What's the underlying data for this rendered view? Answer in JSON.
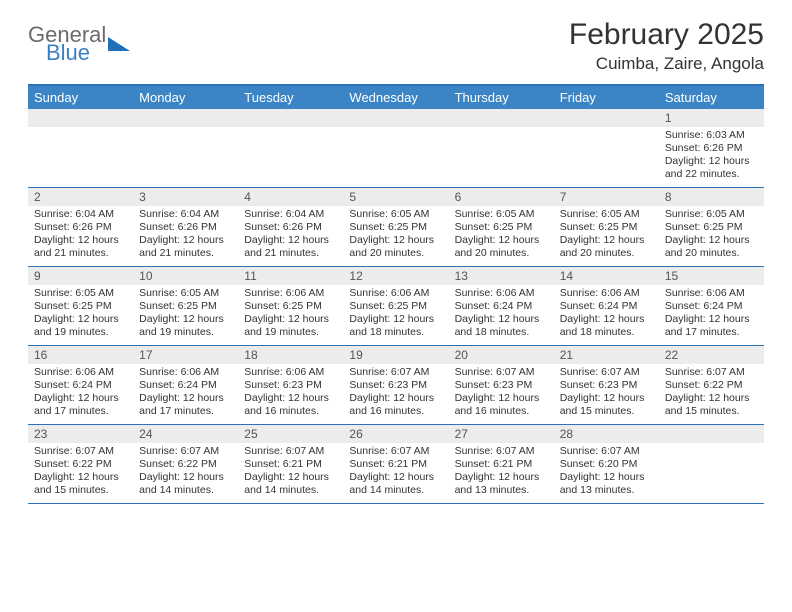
{
  "logo": {
    "text1": "General",
    "text2": "Blue"
  },
  "title": "February 2025",
  "location": "Cuimba, Zaire, Angola",
  "colors": {
    "header_bar": "#3b85c6",
    "border": "#2b72b8",
    "daynum_bg": "#ececec",
    "text": "#333333"
  },
  "weekdays": [
    "Sunday",
    "Monday",
    "Tuesday",
    "Wednesday",
    "Thursday",
    "Friday",
    "Saturday"
  ],
  "weeks": [
    [
      {
        "day": "",
        "sunrise": "",
        "sunset": "",
        "daylight": ""
      },
      {
        "day": "",
        "sunrise": "",
        "sunset": "",
        "daylight": ""
      },
      {
        "day": "",
        "sunrise": "",
        "sunset": "",
        "daylight": ""
      },
      {
        "day": "",
        "sunrise": "",
        "sunset": "",
        "daylight": ""
      },
      {
        "day": "",
        "sunrise": "",
        "sunset": "",
        "daylight": ""
      },
      {
        "day": "",
        "sunrise": "",
        "sunset": "",
        "daylight": ""
      },
      {
        "day": "1",
        "sunrise": "Sunrise: 6:03 AM",
        "sunset": "Sunset: 6:26 PM",
        "daylight": "Daylight: 12 hours and 22 minutes."
      }
    ],
    [
      {
        "day": "2",
        "sunrise": "Sunrise: 6:04 AM",
        "sunset": "Sunset: 6:26 PM",
        "daylight": "Daylight: 12 hours and 21 minutes."
      },
      {
        "day": "3",
        "sunrise": "Sunrise: 6:04 AM",
        "sunset": "Sunset: 6:26 PM",
        "daylight": "Daylight: 12 hours and 21 minutes."
      },
      {
        "day": "4",
        "sunrise": "Sunrise: 6:04 AM",
        "sunset": "Sunset: 6:26 PM",
        "daylight": "Daylight: 12 hours and 21 minutes."
      },
      {
        "day": "5",
        "sunrise": "Sunrise: 6:05 AM",
        "sunset": "Sunset: 6:25 PM",
        "daylight": "Daylight: 12 hours and 20 minutes."
      },
      {
        "day": "6",
        "sunrise": "Sunrise: 6:05 AM",
        "sunset": "Sunset: 6:25 PM",
        "daylight": "Daylight: 12 hours and 20 minutes."
      },
      {
        "day": "7",
        "sunrise": "Sunrise: 6:05 AM",
        "sunset": "Sunset: 6:25 PM",
        "daylight": "Daylight: 12 hours and 20 minutes."
      },
      {
        "day": "8",
        "sunrise": "Sunrise: 6:05 AM",
        "sunset": "Sunset: 6:25 PM",
        "daylight": "Daylight: 12 hours and 20 minutes."
      }
    ],
    [
      {
        "day": "9",
        "sunrise": "Sunrise: 6:05 AM",
        "sunset": "Sunset: 6:25 PM",
        "daylight": "Daylight: 12 hours and 19 minutes."
      },
      {
        "day": "10",
        "sunrise": "Sunrise: 6:05 AM",
        "sunset": "Sunset: 6:25 PM",
        "daylight": "Daylight: 12 hours and 19 minutes."
      },
      {
        "day": "11",
        "sunrise": "Sunrise: 6:06 AM",
        "sunset": "Sunset: 6:25 PM",
        "daylight": "Daylight: 12 hours and 19 minutes."
      },
      {
        "day": "12",
        "sunrise": "Sunrise: 6:06 AM",
        "sunset": "Sunset: 6:25 PM",
        "daylight": "Daylight: 12 hours and 18 minutes."
      },
      {
        "day": "13",
        "sunrise": "Sunrise: 6:06 AM",
        "sunset": "Sunset: 6:24 PM",
        "daylight": "Daylight: 12 hours and 18 minutes."
      },
      {
        "day": "14",
        "sunrise": "Sunrise: 6:06 AM",
        "sunset": "Sunset: 6:24 PM",
        "daylight": "Daylight: 12 hours and 18 minutes."
      },
      {
        "day": "15",
        "sunrise": "Sunrise: 6:06 AM",
        "sunset": "Sunset: 6:24 PM",
        "daylight": "Daylight: 12 hours and 17 minutes."
      }
    ],
    [
      {
        "day": "16",
        "sunrise": "Sunrise: 6:06 AM",
        "sunset": "Sunset: 6:24 PM",
        "daylight": "Daylight: 12 hours and 17 minutes."
      },
      {
        "day": "17",
        "sunrise": "Sunrise: 6:06 AM",
        "sunset": "Sunset: 6:24 PM",
        "daylight": "Daylight: 12 hours and 17 minutes."
      },
      {
        "day": "18",
        "sunrise": "Sunrise: 6:06 AM",
        "sunset": "Sunset: 6:23 PM",
        "daylight": "Daylight: 12 hours and 16 minutes."
      },
      {
        "day": "19",
        "sunrise": "Sunrise: 6:07 AM",
        "sunset": "Sunset: 6:23 PM",
        "daylight": "Daylight: 12 hours and 16 minutes."
      },
      {
        "day": "20",
        "sunrise": "Sunrise: 6:07 AM",
        "sunset": "Sunset: 6:23 PM",
        "daylight": "Daylight: 12 hours and 16 minutes."
      },
      {
        "day": "21",
        "sunrise": "Sunrise: 6:07 AM",
        "sunset": "Sunset: 6:23 PM",
        "daylight": "Daylight: 12 hours and 15 minutes."
      },
      {
        "day": "22",
        "sunrise": "Sunrise: 6:07 AM",
        "sunset": "Sunset: 6:22 PM",
        "daylight": "Daylight: 12 hours and 15 minutes."
      }
    ],
    [
      {
        "day": "23",
        "sunrise": "Sunrise: 6:07 AM",
        "sunset": "Sunset: 6:22 PM",
        "daylight": "Daylight: 12 hours and 15 minutes."
      },
      {
        "day": "24",
        "sunrise": "Sunrise: 6:07 AM",
        "sunset": "Sunset: 6:22 PM",
        "daylight": "Daylight: 12 hours and 14 minutes."
      },
      {
        "day": "25",
        "sunrise": "Sunrise: 6:07 AM",
        "sunset": "Sunset: 6:21 PM",
        "daylight": "Daylight: 12 hours and 14 minutes."
      },
      {
        "day": "26",
        "sunrise": "Sunrise: 6:07 AM",
        "sunset": "Sunset: 6:21 PM",
        "daylight": "Daylight: 12 hours and 14 minutes."
      },
      {
        "day": "27",
        "sunrise": "Sunrise: 6:07 AM",
        "sunset": "Sunset: 6:21 PM",
        "daylight": "Daylight: 12 hours and 13 minutes."
      },
      {
        "day": "28",
        "sunrise": "Sunrise: 6:07 AM",
        "sunset": "Sunset: 6:20 PM",
        "daylight": "Daylight: 12 hours and 13 minutes."
      },
      {
        "day": "",
        "sunrise": "",
        "sunset": "",
        "daylight": ""
      }
    ]
  ]
}
